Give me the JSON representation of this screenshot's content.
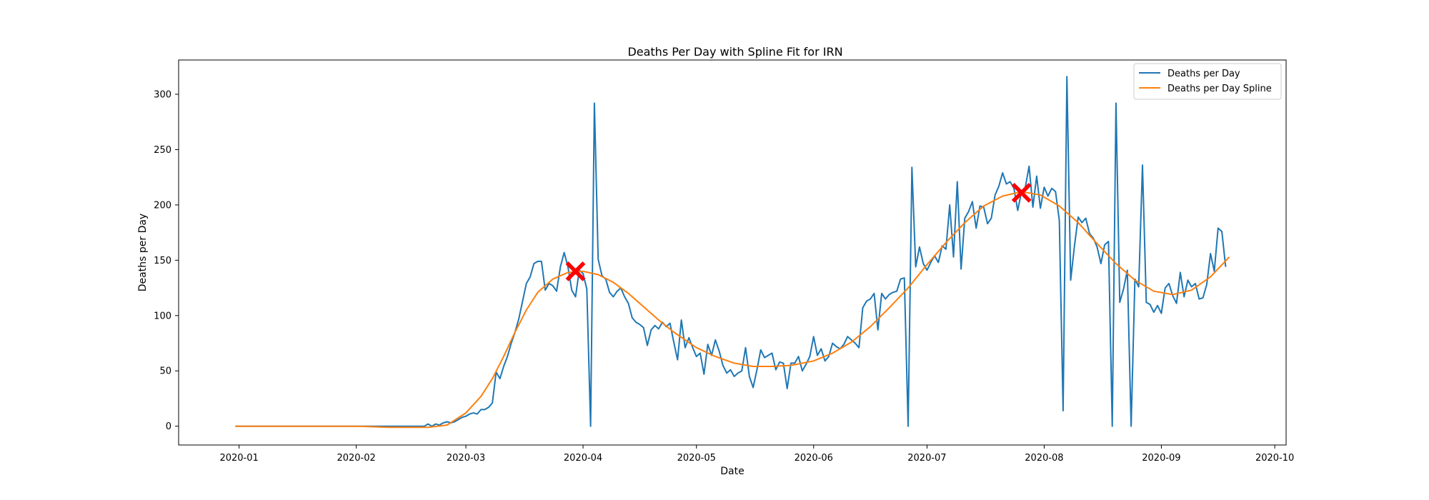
{
  "chart_data": {
    "type": "line",
    "title": "Deaths Per Day with Spline Fit for IRN",
    "xlabel": "Date",
    "ylabel": "Deaths per Day",
    "xlim": [
      "2019-12-16",
      "2020-10-04"
    ],
    "ylim": [
      -17,
      331
    ],
    "x_ticks": [
      "2020-01",
      "2020-02",
      "2020-03",
      "2020-04",
      "2020-05",
      "2020-06",
      "2020-07",
      "2020-08",
      "2020-09",
      "2020-10"
    ],
    "y_ticks": [
      0,
      50,
      100,
      150,
      200,
      250,
      300
    ],
    "grid": false,
    "legend_position": "top-right",
    "series": [
      {
        "name": "Deaths per Day",
        "color": "#1f77b4",
        "points": [
          [
            "2019-12-31",
            0
          ],
          [
            "2020-01-10",
            0
          ],
          [
            "2020-01-20",
            0
          ],
          [
            "2020-02-01",
            0
          ],
          [
            "2020-02-10",
            0
          ],
          [
            "2020-02-19",
            0
          ],
          [
            "2020-02-20",
            2
          ],
          [
            "2020-02-21",
            0
          ],
          [
            "2020-02-22",
            2
          ],
          [
            "2020-02-23",
            1
          ],
          [
            "2020-02-24",
            3
          ],
          [
            "2020-02-25",
            4
          ],
          [
            "2020-02-26",
            3
          ],
          [
            "2020-02-27",
            4
          ],
          [
            "2020-02-28",
            6
          ],
          [
            "2020-02-29",
            8
          ],
          [
            "2020-03-01",
            9
          ],
          [
            "2020-03-02",
            11
          ],
          [
            "2020-03-03",
            12
          ],
          [
            "2020-03-04",
            11
          ],
          [
            "2020-03-05",
            15
          ],
          [
            "2020-03-06",
            15
          ],
          [
            "2020-03-07",
            17
          ],
          [
            "2020-03-08",
            21
          ],
          [
            "2020-03-09",
            49
          ],
          [
            "2020-03-10",
            43
          ],
          [
            "2020-03-11",
            54
          ],
          [
            "2020-03-12",
            63
          ],
          [
            "2020-03-13",
            75
          ],
          [
            "2020-03-14",
            85
          ],
          [
            "2020-03-15",
            97
          ],
          [
            "2020-03-16",
            113
          ],
          [
            "2020-03-17",
            129
          ],
          [
            "2020-03-18",
            135
          ],
          [
            "2020-03-19",
            147
          ],
          [
            "2020-03-20",
            149
          ],
          [
            "2020-03-21",
            149
          ],
          [
            "2020-03-22",
            123
          ],
          [
            "2020-03-23",
            129
          ],
          [
            "2020-03-24",
            127
          ],
          [
            "2020-03-25",
            122
          ],
          [
            "2020-03-26",
            144
          ],
          [
            "2020-03-27",
            157
          ],
          [
            "2020-03-28",
            144
          ],
          [
            "2020-03-29",
            123
          ],
          [
            "2020-03-30",
            117
          ],
          [
            "2020-03-31",
            141
          ],
          [
            "2020-04-01",
            138
          ],
          [
            "2020-04-02",
            124
          ],
          [
            "2020-04-03",
            0
          ],
          [
            "2020-04-04",
            292
          ],
          [
            "2020-04-05",
            151
          ],
          [
            "2020-04-06",
            136
          ],
          [
            "2020-04-07",
            133
          ],
          [
            "2020-04-08",
            121
          ],
          [
            "2020-04-09",
            117
          ],
          [
            "2020-04-10",
            122
          ],
          [
            "2020-04-11",
            125
          ],
          [
            "2020-04-12",
            117
          ],
          [
            "2020-04-13",
            111
          ],
          [
            "2020-04-14",
            98
          ],
          [
            "2020-04-15",
            94
          ],
          [
            "2020-04-16",
            92
          ],
          [
            "2020-04-17",
            89
          ],
          [
            "2020-04-18",
            73
          ],
          [
            "2020-04-19",
            87
          ],
          [
            "2020-04-20",
            91
          ],
          [
            "2020-04-21",
            88
          ],
          [
            "2020-04-22",
            94
          ],
          [
            "2020-04-23",
            90
          ],
          [
            "2020-04-24",
            93
          ],
          [
            "2020-04-25",
            76
          ],
          [
            "2020-04-26",
            60
          ],
          [
            "2020-04-27",
            96
          ],
          [
            "2020-04-28",
            71
          ],
          [
            "2020-04-29",
            80
          ],
          [
            "2020-04-30",
            71
          ],
          [
            "2020-05-01",
            63
          ],
          [
            "2020-05-02",
            66
          ],
          [
            "2020-05-03",
            47
          ],
          [
            "2020-05-04",
            74
          ],
          [
            "2020-05-05",
            64
          ],
          [
            "2020-05-06",
            78
          ],
          [
            "2020-05-07",
            68
          ],
          [
            "2020-05-08",
            55
          ],
          [
            "2020-05-09",
            48
          ],
          [
            "2020-05-10",
            51
          ],
          [
            "2020-05-11",
            45
          ],
          [
            "2020-05-12",
            48
          ],
          [
            "2020-05-13",
            50
          ],
          [
            "2020-05-14",
            71
          ],
          [
            "2020-05-15",
            45
          ],
          [
            "2020-05-16",
            35
          ],
          [
            "2020-05-17",
            51
          ],
          [
            "2020-05-18",
            69
          ],
          [
            "2020-05-19",
            62
          ],
          [
            "2020-05-20",
            64
          ],
          [
            "2020-05-21",
            66
          ],
          [
            "2020-05-22",
            51
          ],
          [
            "2020-05-23",
            58
          ],
          [
            "2020-05-24",
            57
          ],
          [
            "2020-05-25",
            34
          ],
          [
            "2020-05-26",
            57
          ],
          [
            "2020-05-27",
            57
          ],
          [
            "2020-05-28",
            63
          ],
          [
            "2020-05-29",
            50
          ],
          [
            "2020-05-30",
            56
          ],
          [
            "2020-05-31",
            63
          ],
          [
            "2020-06-01",
            81
          ],
          [
            "2020-06-02",
            64
          ],
          [
            "2020-06-03",
            70
          ],
          [
            "2020-06-04",
            59
          ],
          [
            "2020-06-05",
            63
          ],
          [
            "2020-06-06",
            75
          ],
          [
            "2020-06-07",
            72
          ],
          [
            "2020-06-08",
            70
          ],
          [
            "2020-06-09",
            74
          ],
          [
            "2020-06-10",
            81
          ],
          [
            "2020-06-11",
            78
          ],
          [
            "2020-06-12",
            75
          ],
          [
            "2020-06-13",
            71
          ],
          [
            "2020-06-14",
            107
          ],
          [
            "2020-06-15",
            113
          ],
          [
            "2020-06-16",
            115
          ],
          [
            "2020-06-17",
            120
          ],
          [
            "2020-06-18",
            87
          ],
          [
            "2020-06-19",
            120
          ],
          [
            "2020-06-20",
            115
          ],
          [
            "2020-06-21",
            119
          ],
          [
            "2020-06-22",
            121
          ],
          [
            "2020-06-23",
            122
          ],
          [
            "2020-06-24",
            133
          ],
          [
            "2020-06-25",
            134
          ],
          [
            "2020-06-26",
            0
          ],
          [
            "2020-06-27",
            234
          ],
          [
            "2020-06-28",
            144
          ],
          [
            "2020-06-29",
            162
          ],
          [
            "2020-06-30",
            147
          ],
          [
            "2020-07-01",
            141
          ],
          [
            "2020-07-02",
            148
          ],
          [
            "2020-07-03",
            154
          ],
          [
            "2020-07-04",
            148
          ],
          [
            "2020-07-05",
            163
          ],
          [
            "2020-07-06",
            160
          ],
          [
            "2020-07-07",
            200
          ],
          [
            "2020-07-08",
            153
          ],
          [
            "2020-07-09",
            221
          ],
          [
            "2020-07-10",
            142
          ],
          [
            "2020-07-11",
            188
          ],
          [
            "2020-07-12",
            194
          ],
          [
            "2020-07-13",
            203
          ],
          [
            "2020-07-14",
            179
          ],
          [
            "2020-07-15",
            199
          ],
          [
            "2020-07-16",
            198
          ],
          [
            "2020-07-17",
            183
          ],
          [
            "2020-07-18",
            188
          ],
          [
            "2020-07-19",
            209
          ],
          [
            "2020-07-20",
            217
          ],
          [
            "2020-07-21",
            229
          ],
          [
            "2020-07-22",
            219
          ],
          [
            "2020-07-23",
            221
          ],
          [
            "2020-07-24",
            215
          ],
          [
            "2020-07-25",
            195
          ],
          [
            "2020-07-26",
            212
          ],
          [
            "2020-07-27",
            216
          ],
          [
            "2020-07-28",
            235
          ],
          [
            "2020-07-29",
            198
          ],
          [
            "2020-07-30",
            226
          ],
          [
            "2020-07-31",
            197
          ],
          [
            "2020-08-01",
            216
          ],
          [
            "2020-08-02",
            208
          ],
          [
            "2020-08-03",
            215
          ],
          [
            "2020-08-04",
            212
          ],
          [
            "2020-08-05",
            186
          ],
          [
            "2020-08-06",
            14
          ],
          [
            "2020-08-07",
            316
          ],
          [
            "2020-08-08",
            132
          ],
          [
            "2020-08-09",
            163
          ],
          [
            "2020-08-10",
            189
          ],
          [
            "2020-08-11",
            184
          ],
          [
            "2020-08-12",
            188
          ],
          [
            "2020-08-13",
            174
          ],
          [
            "2020-08-14",
            170
          ],
          [
            "2020-08-15",
            162
          ],
          [
            "2020-08-16",
            147
          ],
          [
            "2020-08-17",
            164
          ],
          [
            "2020-08-18",
            167
          ],
          [
            "2020-08-19",
            0
          ],
          [
            "2020-08-20",
            292
          ],
          [
            "2020-08-21",
            112
          ],
          [
            "2020-08-22",
            124
          ],
          [
            "2020-08-23",
            141
          ],
          [
            "2020-08-24",
            0
          ],
          [
            "2020-08-25",
            133
          ],
          [
            "2020-08-26",
            126
          ],
          [
            "2020-08-27",
            236
          ],
          [
            "2020-08-28",
            112
          ],
          [
            "2020-08-29",
            110
          ],
          [
            "2020-08-30",
            103
          ],
          [
            "2020-08-31",
            109
          ],
          [
            "2020-09-01",
            102
          ],
          [
            "2020-09-02",
            125
          ],
          [
            "2020-09-03",
            129
          ],
          [
            "2020-09-04",
            118
          ],
          [
            "2020-09-05",
            111
          ],
          [
            "2020-09-06",
            139
          ],
          [
            "2020-09-07",
            117
          ],
          [
            "2020-09-08",
            132
          ],
          [
            "2020-09-09",
            126
          ],
          [
            "2020-09-10",
            129
          ],
          [
            "2020-09-11",
            115
          ],
          [
            "2020-09-12",
            116
          ],
          [
            "2020-09-13",
            128
          ],
          [
            "2020-09-14",
            156
          ],
          [
            "2020-09-15",
            140
          ],
          [
            "2020-09-16",
            179
          ],
          [
            "2020-09-17",
            176
          ],
          [
            "2020-09-18",
            144
          ]
        ]
      },
      {
        "name": "Deaths per Day Spline",
        "color": "#ff7f0e",
        "points": [
          [
            "2019-12-31",
            0
          ],
          [
            "2020-01-15",
            0
          ],
          [
            "2020-02-01",
            0
          ],
          [
            "2020-02-10",
            -1
          ],
          [
            "2020-02-20",
            -1
          ],
          [
            "2020-02-25",
            1
          ],
          [
            "2020-03-01",
            12
          ],
          [
            "2020-03-05",
            27
          ],
          [
            "2020-03-08",
            43
          ],
          [
            "2020-03-11",
            63
          ],
          [
            "2020-03-14",
            85
          ],
          [
            "2020-03-17",
            105
          ],
          [
            "2020-03-20",
            121
          ],
          [
            "2020-03-24",
            133
          ],
          [
            "2020-03-28",
            139
          ],
          [
            "2020-04-01",
            140
          ],
          [
            "2020-04-05",
            137
          ],
          [
            "2020-04-09",
            130
          ],
          [
            "2020-04-13",
            120
          ],
          [
            "2020-04-17",
            108
          ],
          [
            "2020-04-21",
            96
          ],
          [
            "2020-04-25",
            85
          ],
          [
            "2020-05-01",
            71
          ],
          [
            "2020-05-06",
            63
          ],
          [
            "2020-05-11",
            57
          ],
          [
            "2020-05-16",
            54
          ],
          [
            "2020-05-21",
            54
          ],
          [
            "2020-05-26",
            55
          ],
          [
            "2020-06-01",
            59
          ],
          [
            "2020-06-06",
            66
          ],
          [
            "2020-06-11",
            76
          ],
          [
            "2020-06-16",
            90
          ],
          [
            "2020-06-21",
            107
          ],
          [
            "2020-06-26",
            125
          ],
          [
            "2020-07-01",
            146
          ],
          [
            "2020-07-06",
            166
          ],
          [
            "2020-07-11",
            184
          ],
          [
            "2020-07-16",
            199
          ],
          [
            "2020-07-21",
            208
          ],
          [
            "2020-07-26",
            212
          ],
          [
            "2020-07-31",
            209
          ],
          [
            "2020-08-05",
            199
          ],
          [
            "2020-08-10",
            184
          ],
          [
            "2020-08-15",
            165
          ],
          [
            "2020-08-20",
            147
          ],
          [
            "2020-08-25",
            132
          ],
          [
            "2020-08-30",
            122
          ],
          [
            "2020-09-04",
            119
          ],
          [
            "2020-09-09",
            123
          ],
          [
            "2020-09-14",
            135
          ],
          [
            "2020-09-19",
            153
          ]
        ]
      }
    ],
    "markers": [
      {
        "date": "2020-03-30",
        "value": 140,
        "color": "#ff0000",
        "symbol": "X"
      },
      {
        "date": "2020-07-26",
        "value": 211,
        "color": "#ff0000",
        "symbol": "X"
      }
    ]
  }
}
